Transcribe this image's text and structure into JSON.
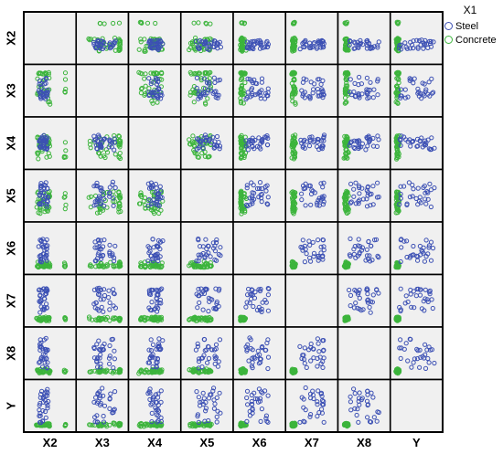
{
  "chart_data": {
    "type": "scatter",
    "variables": [
      "X2",
      "X3",
      "X4",
      "X5",
      "X6",
      "X7",
      "X8",
      "Y"
    ],
    "legend": {
      "title": "X1",
      "entries": [
        {
          "name": "Steel",
          "color": "#3c50b4"
        },
        {
          "name": "Concrete",
          "color": "#3cb43c"
        }
      ],
      "placement": "top-right, outside matrix"
    },
    "grid": false,
    "diagonal": "empty",
    "series_colors": {
      "Steel": "#3c50b4",
      "Concrete": "#3cb43c"
    }
  }
}
